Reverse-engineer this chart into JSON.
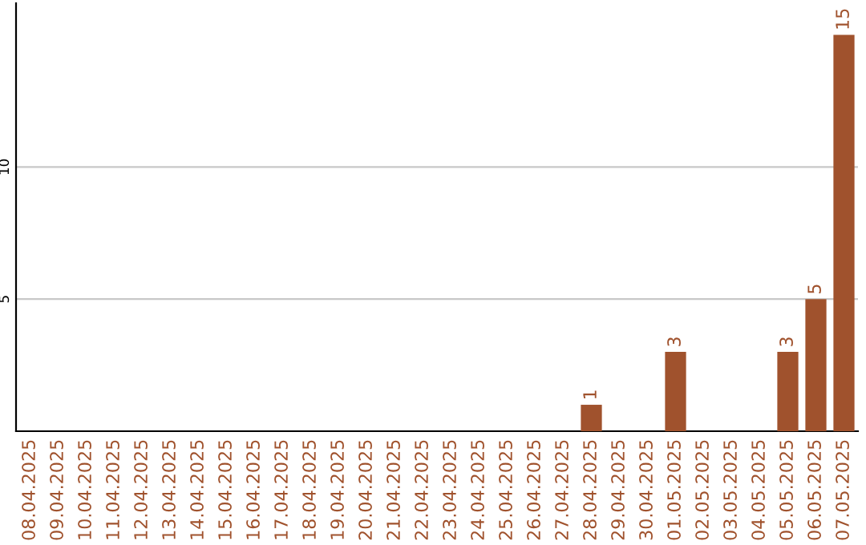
{
  "chart_data": {
    "type": "bar",
    "categories": [
      "08.04.2025",
      "09.04.2025",
      "10.04.2025",
      "11.04.2025",
      "12.04.2025",
      "13.04.2025",
      "14.04.2025",
      "15.04.2025",
      "16.04.2025",
      "17.04.2025",
      "18.04.2025",
      "19.04.2025",
      "20.04.2025",
      "21.04.2025",
      "22.04.2025",
      "23.04.2025",
      "24.04.2025",
      "25.04.2025",
      "26.04.2025",
      "27.04.2025",
      "28.04.2025",
      "29.04.2025",
      "30.04.2025",
      "01.05.2025",
      "02.05.2025",
      "03.05.2025",
      "04.05.2025",
      "05.05.2025",
      "06.05.2025",
      "07.05.2025"
    ],
    "values": [
      0,
      0,
      0,
      0,
      0,
      0,
      0,
      0,
      0,
      0,
      0,
      0,
      0,
      0,
      0,
      0,
      0,
      0,
      0,
      0,
      1,
      0,
      0,
      3,
      0,
      0,
      0,
      3,
      5,
      15
    ],
    "value_labels": [
      null,
      null,
      null,
      null,
      null,
      null,
      null,
      null,
      null,
      null,
      null,
      null,
      null,
      null,
      null,
      null,
      null,
      null,
      null,
      null,
      "1",
      null,
      null,
      "3",
      null,
      null,
      null,
      "3",
      "5",
      "15"
    ],
    "color": "#a0522d",
    "ylim": [
      0,
      16.2
    ],
    "yticks": [
      5,
      10
    ],
    "grid": "y"
  }
}
